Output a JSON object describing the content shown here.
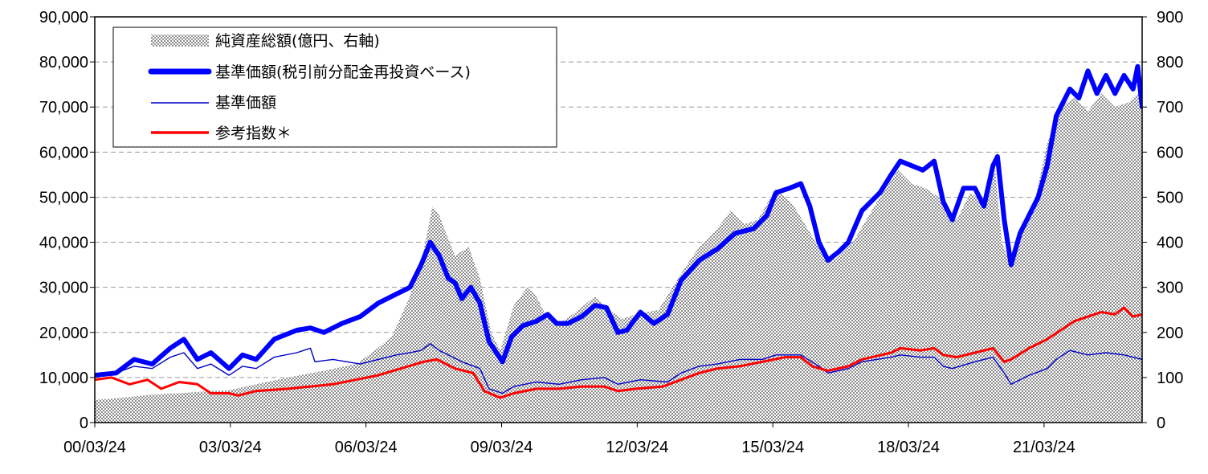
{
  "chart_data": {
    "type": "line",
    "y_left": {
      "min": 0,
      "max": 90000,
      "step": 10000,
      "tick_labels": [
        "0",
        "10,000",
        "20,000",
        "30,000",
        "40,000",
        "50,000",
        "60,000",
        "70,000",
        "80,000",
        "90,000"
      ]
    },
    "y_right": {
      "min": 0,
      "max": 900,
      "step": 100,
      "tick_labels": [
        "0",
        "100",
        "200",
        "300",
        "400",
        "500",
        "600",
        "700",
        "800",
        "900"
      ]
    },
    "x": {
      "min": 2000.23,
      "max": 2023.4,
      "ticks": [
        2000.23,
        2003.23,
        2006.23,
        2009.23,
        2012.23,
        2015.23,
        2018.23,
        2021.23
      ],
      "tick_labels": [
        "00/03/24",
        "03/03/24",
        "06/03/24",
        "09/03/24",
        "12/03/24",
        "15/03/24",
        "18/03/24",
        "21/03/24"
      ]
    },
    "grid": "horizontal-dashed",
    "legend_position": "top-left",
    "legend": [
      {
        "label": "純資産総額(億円、右軸)",
        "style": "area-hatched"
      },
      {
        "label": "基準価額(税引前分配金再投資ベース)",
        "style": "line-thick",
        "color": "#0000ff"
      },
      {
        "label": "基準価額",
        "style": "line-thin",
        "color": "#0000cc"
      },
      {
        "label": "参考指数＊",
        "style": "line-medium",
        "color": "#ff0000"
      }
    ],
    "series": [
      {
        "name": "純資産総額(億円、右軸)",
        "axis": "right",
        "type": "area",
        "points": [
          [
            2000.23,
            50
          ],
          [
            2000.8,
            55
          ],
          [
            2001.5,
            62
          ],
          [
            2002.2,
            66
          ],
          [
            2002.8,
            70
          ],
          [
            2003.2,
            72
          ],
          [
            2003.8,
            85
          ],
          [
            2004.5,
            100
          ],
          [
            2005.3,
            115
          ],
          [
            2006.0,
            130
          ],
          [
            2006.3,
            150
          ],
          [
            2006.8,
            190
          ],
          [
            2007.2,
            280
          ],
          [
            2007.5,
            380
          ],
          [
            2007.7,
            480
          ],
          [
            2007.85,
            460
          ],
          [
            2008.0,
            420
          ],
          [
            2008.2,
            370
          ],
          [
            2008.5,
            390
          ],
          [
            2008.75,
            320
          ],
          [
            2009.0,
            200
          ],
          [
            2009.2,
            160
          ],
          [
            2009.5,
            260
          ],
          [
            2009.8,
            300
          ],
          [
            2010.0,
            280
          ],
          [
            2010.2,
            240
          ],
          [
            2010.5,
            220
          ],
          [
            2010.8,
            240
          ],
          [
            2011.3,
            280
          ],
          [
            2011.6,
            250
          ],
          [
            2011.9,
            230
          ],
          [
            2012.2,
            240
          ],
          [
            2012.7,
            250
          ],
          [
            2013.2,
            330
          ],
          [
            2013.6,
            390
          ],
          [
            2014.0,
            430
          ],
          [
            2014.3,
            470
          ],
          [
            2014.6,
            440
          ],
          [
            2014.9,
            450
          ],
          [
            2015.3,
            520
          ],
          [
            2015.7,
            480
          ],
          [
            2016.0,
            430
          ],
          [
            2016.3,
            380
          ],
          [
            2016.6,
            360
          ],
          [
            2017.0,
            400
          ],
          [
            2017.3,
            450
          ],
          [
            2017.6,
            500
          ],
          [
            2018.0,
            560
          ],
          [
            2018.3,
            530
          ],
          [
            2018.6,
            520
          ],
          [
            2018.9,
            500
          ],
          [
            2019.3,
            450
          ],
          [
            2019.6,
            510
          ],
          [
            2019.9,
            490
          ],
          [
            2020.15,
            560
          ],
          [
            2020.3,
            400
          ],
          [
            2020.45,
            360
          ],
          [
            2020.7,
            420
          ],
          [
            2021.0,
            480
          ],
          [
            2021.3,
            620
          ],
          [
            2021.6,
            700
          ],
          [
            2021.9,
            720
          ],
          [
            2022.2,
            690
          ],
          [
            2022.5,
            730
          ],
          [
            2022.8,
            700
          ],
          [
            2023.1,
            710
          ],
          [
            2023.3,
            730
          ],
          [
            2023.4,
            720
          ]
        ]
      },
      {
        "name": "基準価額(税引前分配金再投資ベース)",
        "axis": "left",
        "type": "line",
        "points": [
          [
            2000.23,
            10500
          ],
          [
            2000.7,
            11000
          ],
          [
            2001.1,
            14000
          ],
          [
            2001.5,
            13000
          ],
          [
            2001.9,
            16500
          ],
          [
            2002.2,
            18500
          ],
          [
            2002.5,
            14000
          ],
          [
            2002.8,
            15500
          ],
          [
            2003.2,
            12000
          ],
          [
            2003.5,
            15000
          ],
          [
            2003.8,
            14000
          ],
          [
            2004.2,
            18500
          ],
          [
            2004.7,
            20500
          ],
          [
            2005.0,
            21000
          ],
          [
            2005.3,
            20000
          ],
          [
            2005.7,
            22000
          ],
          [
            2006.1,
            23500
          ],
          [
            2006.5,
            26500
          ],
          [
            2006.9,
            28500
          ],
          [
            2007.2,
            30000
          ],
          [
            2007.45,
            35000
          ],
          [
            2007.65,
            40000
          ],
          [
            2007.85,
            37000
          ],
          [
            2008.05,
            32000
          ],
          [
            2008.2,
            31000
          ],
          [
            2008.35,
            27500
          ],
          [
            2008.55,
            30000
          ],
          [
            2008.75,
            26500
          ],
          [
            2008.95,
            18000
          ],
          [
            2009.15,
            15000
          ],
          [
            2009.25,
            13500
          ],
          [
            2009.45,
            19000
          ],
          [
            2009.7,
            21500
          ],
          [
            2010.0,
            22500
          ],
          [
            2010.25,
            24000
          ],
          [
            2010.45,
            22000
          ],
          [
            2010.7,
            22000
          ],
          [
            2011.0,
            23500
          ],
          [
            2011.3,
            26000
          ],
          [
            2011.55,
            25500
          ],
          [
            2011.8,
            20000
          ],
          [
            2012.0,
            20500
          ],
          [
            2012.3,
            24500
          ],
          [
            2012.6,
            22000
          ],
          [
            2012.9,
            24000
          ],
          [
            2013.2,
            31500
          ],
          [
            2013.6,
            36000
          ],
          [
            2014.0,
            38500
          ],
          [
            2014.4,
            42000
          ],
          [
            2014.8,
            43000
          ],
          [
            2015.1,
            46000
          ],
          [
            2015.3,
            51000
          ],
          [
            2015.6,
            52000
          ],
          [
            2015.85,
            53000
          ],
          [
            2016.05,
            48000
          ],
          [
            2016.25,
            40000
          ],
          [
            2016.45,
            36000
          ],
          [
            2016.7,
            38000
          ],
          [
            2016.9,
            40000
          ],
          [
            2017.2,
            47000
          ],
          [
            2017.6,
            51000
          ],
          [
            2017.85,
            55000
          ],
          [
            2018.05,
            58000
          ],
          [
            2018.3,
            57000
          ],
          [
            2018.55,
            56000
          ],
          [
            2018.8,
            58000
          ],
          [
            2019.0,
            49000
          ],
          [
            2019.2,
            45000
          ],
          [
            2019.45,
            52000
          ],
          [
            2019.7,
            52000
          ],
          [
            2019.9,
            48000
          ],
          [
            2020.1,
            57000
          ],
          [
            2020.2,
            59000
          ],
          [
            2020.35,
            45000
          ],
          [
            2020.5,
            35000
          ],
          [
            2020.7,
            42000
          ],
          [
            2020.9,
            46000
          ],
          [
            2021.1,
            50000
          ],
          [
            2021.3,
            57000
          ],
          [
            2021.5,
            68000
          ],
          [
            2021.8,
            74000
          ],
          [
            2022.0,
            72000
          ],
          [
            2022.2,
            78000
          ],
          [
            2022.4,
            73000
          ],
          [
            2022.6,
            77000
          ],
          [
            2022.8,
            73000
          ],
          [
            2023.0,
            77000
          ],
          [
            2023.2,
            74000
          ],
          [
            2023.3,
            79000
          ],
          [
            2023.4,
            70000
          ]
        ]
      },
      {
        "name": "基準価額",
        "axis": "left",
        "type": "line",
        "points": [
          [
            2000.23,
            10500
          ],
          [
            2000.7,
            11000
          ],
          [
            2001.1,
            12500
          ],
          [
            2001.5,
            12000
          ],
          [
            2001.9,
            14500
          ],
          [
            2002.2,
            15500
          ],
          [
            2002.5,
            12000
          ],
          [
            2002.8,
            13000
          ],
          [
            2003.2,
            10500
          ],
          [
            2003.5,
            12500
          ],
          [
            2003.8,
            12000
          ],
          [
            2004.2,
            14500
          ],
          [
            2004.7,
            15500
          ],
          [
            2005.0,
            16500
          ],
          [
            2005.1,
            13500
          ],
          [
            2005.5,
            14000
          ],
          [
            2006.1,
            13000
          ],
          [
            2006.5,
            14000
          ],
          [
            2006.9,
            15000
          ],
          [
            2007.2,
            15500
          ],
          [
            2007.45,
            16000
          ],
          [
            2007.65,
            17500
          ],
          [
            2007.85,
            16000
          ],
          [
            2008.05,
            15000
          ],
          [
            2008.35,
            13500
          ],
          [
            2008.75,
            12000
          ],
          [
            2008.95,
            7500
          ],
          [
            2009.25,
            6500
          ],
          [
            2009.5,
            8000
          ],
          [
            2010.0,
            9000
          ],
          [
            2010.5,
            8500
          ],
          [
            2011.0,
            9500
          ],
          [
            2011.5,
            10000
          ],
          [
            2011.8,
            8500
          ],
          [
            2012.3,
            9500
          ],
          [
            2012.9,
            9000
          ],
          [
            2013.2,
            11000
          ],
          [
            2013.6,
            12500
          ],
          [
            2014.0,
            13000
          ],
          [
            2014.5,
            14000
          ],
          [
            2015.0,
            14000
          ],
          [
            2015.3,
            15000
          ],
          [
            2015.85,
            15000
          ],
          [
            2016.25,
            12500
          ],
          [
            2016.45,
            11000
          ],
          [
            2016.9,
            12000
          ],
          [
            2017.2,
            13500
          ],
          [
            2017.85,
            14500
          ],
          [
            2018.05,
            15000
          ],
          [
            2018.5,
            14500
          ],
          [
            2018.8,
            14500
          ],
          [
            2019.0,
            12500
          ],
          [
            2019.2,
            12000
          ],
          [
            2019.7,
            13500
          ],
          [
            2020.1,
            14500
          ],
          [
            2020.35,
            11000
          ],
          [
            2020.5,
            8500
          ],
          [
            2020.9,
            10500
          ],
          [
            2021.3,
            12000
          ],
          [
            2021.5,
            14000
          ],
          [
            2021.8,
            16000
          ],
          [
            2022.2,
            15000
          ],
          [
            2022.6,
            15500
          ],
          [
            2023.0,
            15000
          ],
          [
            2023.4,
            14000
          ]
        ]
      },
      {
        "name": "参考指数＊",
        "axis": "left",
        "type": "line",
        "points": [
          [
            2000.23,
            9500
          ],
          [
            2000.6,
            10000
          ],
          [
            2001.0,
            8500
          ],
          [
            2001.4,
            9500
          ],
          [
            2001.7,
            7500
          ],
          [
            2002.1,
            9000
          ],
          [
            2002.5,
            8500
          ],
          [
            2002.8,
            6500
          ],
          [
            2003.2,
            6500
          ],
          [
            2003.4,
            6000
          ],
          [
            2003.8,
            7000
          ],
          [
            2004.5,
            7500
          ],
          [
            2005.0,
            8000
          ],
          [
            2005.5,
            8500
          ],
          [
            2006.0,
            9500
          ],
          [
            2006.5,
            10500
          ],
          [
            2007.0,
            12000
          ],
          [
            2007.5,
            13500
          ],
          [
            2007.8,
            14000
          ],
          [
            2008.2,
            12000
          ],
          [
            2008.6,
            11000
          ],
          [
            2008.85,
            7000
          ],
          [
            2009.2,
            5500
          ],
          [
            2009.5,
            6500
          ],
          [
            2010.0,
            7500
          ],
          [
            2010.5,
            7500
          ],
          [
            2011.0,
            8000
          ],
          [
            2011.5,
            8000
          ],
          [
            2011.8,
            7000
          ],
          [
            2012.2,
            7500
          ],
          [
            2012.8,
            8000
          ],
          [
            2013.2,
            9500
          ],
          [
            2013.6,
            11000
          ],
          [
            2014.0,
            12000
          ],
          [
            2014.5,
            12500
          ],
          [
            2015.0,
            13500
          ],
          [
            2015.5,
            14500
          ],
          [
            2015.85,
            14500
          ],
          [
            2016.1,
            12500
          ],
          [
            2016.45,
            11500
          ],
          [
            2016.9,
            12500
          ],
          [
            2017.2,
            14000
          ],
          [
            2017.85,
            15500
          ],
          [
            2018.05,
            16500
          ],
          [
            2018.5,
            16000
          ],
          [
            2018.8,
            16500
          ],
          [
            2019.0,
            15000
          ],
          [
            2019.3,
            14500
          ],
          [
            2019.7,
            15500
          ],
          [
            2020.1,
            16500
          ],
          [
            2020.35,
            13500
          ],
          [
            2020.5,
            14000
          ],
          [
            2020.9,
            16500
          ],
          [
            2021.3,
            18500
          ],
          [
            2021.6,
            20500
          ],
          [
            2021.9,
            22500
          ],
          [
            2022.2,
            23500
          ],
          [
            2022.5,
            24500
          ],
          [
            2022.8,
            24000
          ],
          [
            2023.0,
            25500
          ],
          [
            2023.2,
            23500
          ],
          [
            2023.4,
            24000
          ]
        ]
      }
    ]
  }
}
